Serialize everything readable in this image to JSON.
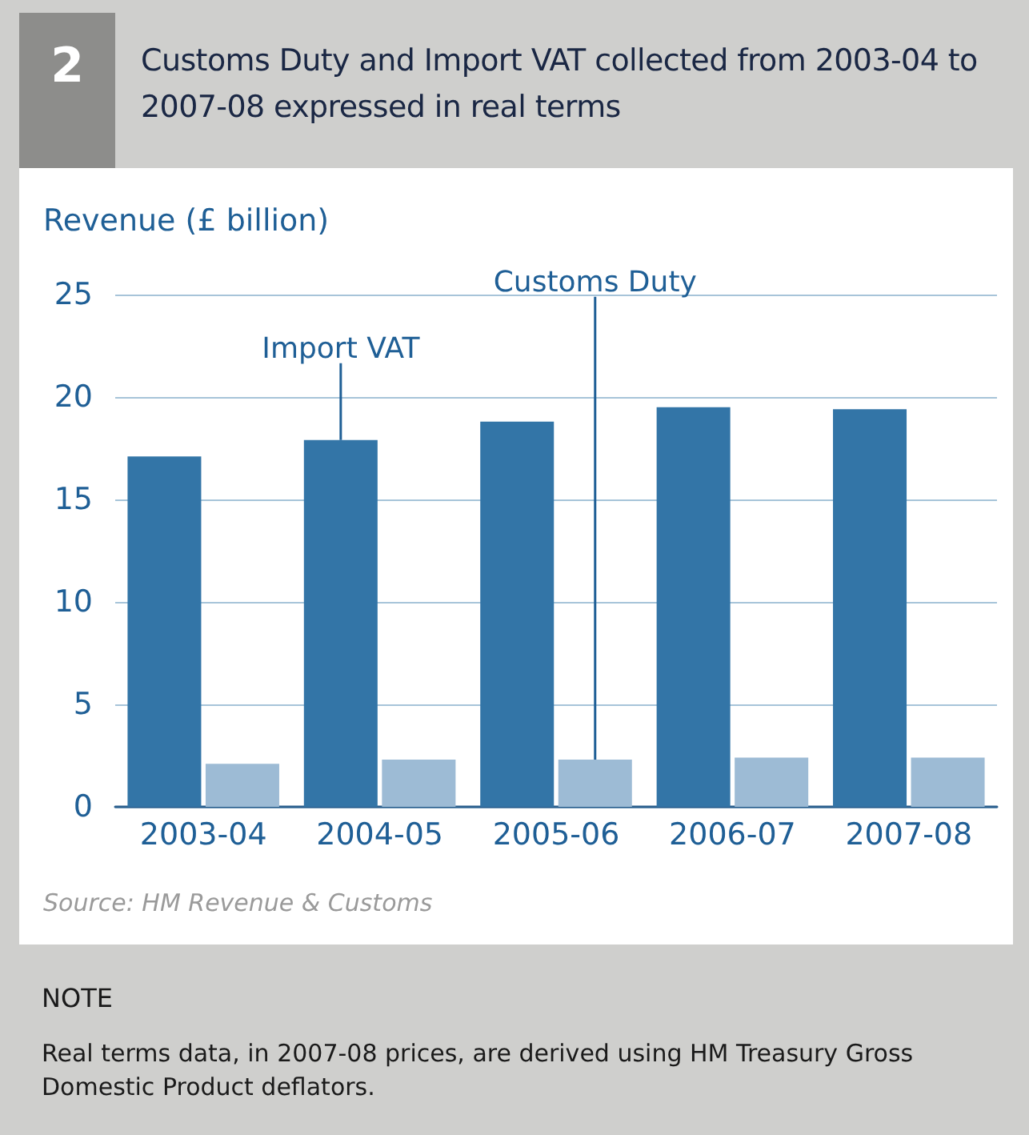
{
  "chart_data": {
    "type": "bar",
    "title": "Customs Duty and Import VAT collected from 2003-04 to 2007-08 expressed in real terms",
    "ylabel": "Revenue (£ billion)",
    "annotations": [
      "2",
      "Source: HM Revenue & Customs",
      "NOTE",
      "Real terms data, in 2007-08 prices, are derived using HM Treasury Gross Domestic Product deflators."
    ],
    "categories": [
      "2003-04",
      "2004-05",
      "2005-06",
      "2006-07",
      "2007-08"
    ],
    "series": [
      {
        "name": "Import VAT",
        "color": "#3375a7",
        "values": [
          17.1,
          17.9,
          18.8,
          19.5,
          19.4
        ]
      },
      {
        "name": "Customs Duty",
        "color": "#9dbbd5",
        "values": [
          2.1,
          2.3,
          2.3,
          2.4,
          2.4
        ]
      }
    ],
    "ylim": [
      0,
      25
    ],
    "yticks": [
      0,
      5,
      10,
      15,
      20,
      25
    ],
    "grid": "y",
    "legend": false
  }
}
